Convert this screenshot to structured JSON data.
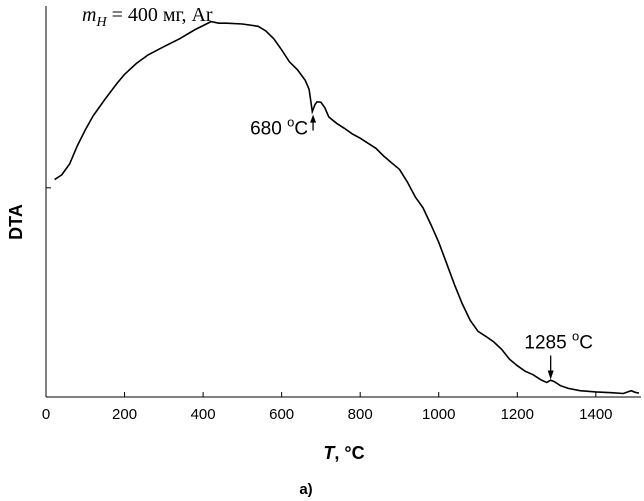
{
  "chart_data": {
    "type": "line",
    "title": "",
    "note": {
      "m": "m",
      "sub": "H",
      "rest": " = 400 мг, Ar"
    },
    "xlabel": {
      "var": "T",
      "unit": ", °C"
    },
    "ylabel": "DTA",
    "caption": "a)",
    "xlim": [
      0,
      1515
    ],
    "ylim": [
      0,
      1
    ],
    "xticks": [
      0,
      200,
      400,
      600,
      800,
      1000,
      1200,
      1400
    ],
    "yticks": [
      0.535
    ],
    "grid": false,
    "series": [
      {
        "x": [
          22,
          40,
          60,
          80,
          100,
          120,
          150,
          180,
          200,
          230,
          260,
          300,
          340,
          380,
          400,
          420,
          440,
          460,
          500,
          540,
          560,
          580,
          600,
          620,
          640,
          660,
          670,
          678,
          685,
          690,
          700,
          710,
          720,
          740,
          760,
          780,
          800,
          840,
          860,
          880,
          900,
          920,
          940,
          960,
          980,
          1000,
          1020,
          1040,
          1060,
          1080,
          1100,
          1120,
          1140,
          1160,
          1180,
          1200,
          1220,
          1240,
          1260,
          1275,
          1285,
          1295,
          1310,
          1330,
          1360,
          1400,
          1440,
          1470,
          1490,
          1500,
          1510
        ],
        "y": [
          0.556,
          0.568,
          0.596,
          0.643,
          0.683,
          0.719,
          0.761,
          0.801,
          0.825,
          0.853,
          0.875,
          0.896,
          0.916,
          0.94,
          0.95,
          0.96,
          0.956,
          0.956,
          0.954,
          0.948,
          0.936,
          0.916,
          0.888,
          0.857,
          0.837,
          0.81,
          0.787,
          0.73,
          0.748,
          0.755,
          0.754,
          0.74,
          0.716,
          0.7,
          0.687,
          0.673,
          0.662,
          0.636,
          0.616,
          0.599,
          0.582,
          0.55,
          0.512,
          0.484,
          0.441,
          0.396,
          0.342,
          0.288,
          0.238,
          0.196,
          0.168,
          0.155,
          0.141,
          0.122,
          0.097,
          0.08,
          0.066,
          0.057,
          0.044,
          0.037,
          0.043,
          0.039,
          0.029,
          0.022,
          0.016,
          0.013,
          0.011,
          0.009,
          0.016,
          0.012,
          0.01
        ]
      }
    ],
    "annotations": [
      {
        "text": "680 °C",
        "num": "680 ",
        "unit": "C",
        "x": 680,
        "y": 0.73,
        "label_side": "left"
      },
      {
        "text": "1285 °C",
        "num": "1285 ",
        "unit": "C",
        "x": 1285,
        "y": 0.037,
        "label_side": "above"
      }
    ]
  }
}
